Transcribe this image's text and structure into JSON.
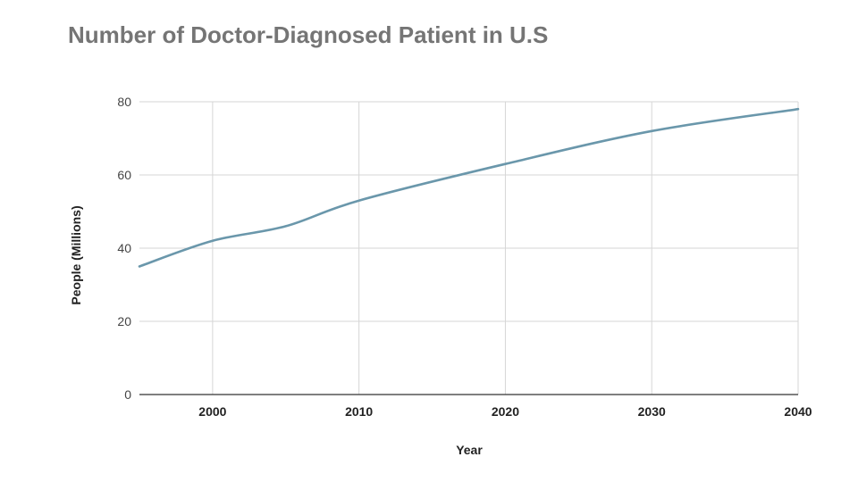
{
  "chart_data": {
    "type": "line",
    "title": "Number of Doctor-Diagnosed Patient in U.S",
    "xlabel": "Year",
    "ylabel": "People (Millions)",
    "xlim": [
      1995,
      2040
    ],
    "ylim": [
      0,
      80
    ],
    "x_ticks": [
      "2000",
      "2010",
      "2020",
      "2030",
      "2040"
    ],
    "y_ticks": [
      "0",
      "20",
      "40",
      "60",
      "80"
    ],
    "grid": true,
    "line_color": "#6a97ab",
    "series": [
      {
        "x": [
          1995,
          2000,
          2005,
          2010,
          2020,
          2030,
          2040
        ],
        "values": [
          35,
          42,
          46,
          53,
          63,
          72,
          78
        ]
      }
    ]
  }
}
